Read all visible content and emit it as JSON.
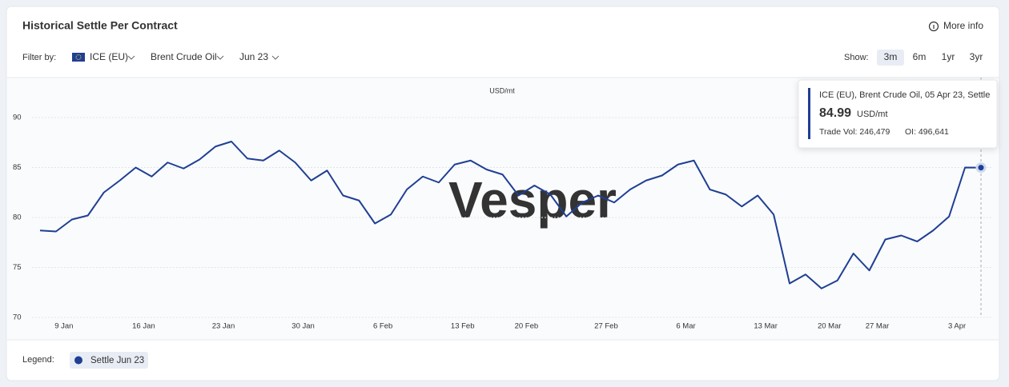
{
  "header": {
    "title": "Historical Settle Per Contract",
    "more_info": "More info"
  },
  "filters": {
    "label": "Filter by:",
    "exchange": "ICE (EU)",
    "product": "Brent Crude Oil",
    "contract": "Jun 23"
  },
  "show": {
    "label": "Show:",
    "options": [
      "3m",
      "6m",
      "1yr",
      "3yr"
    ],
    "selected": "3m"
  },
  "watermark": "Vesper",
  "tooltip": {
    "title": "ICE (EU), Brent Crude Oil, 05 Apr 23, Settle",
    "unit": "USD/mt",
    "trade_vol": "Trade Vol: 246,479",
    "oi": "OI: 496,641"
  },
  "legend_label": "Legend:",
  "chart_data": {
    "type": "line",
    "y_label": "USD/mt",
    "categories": [
      null,
      null,
      "9 Jan",
      null,
      null,
      null,
      null,
      "16 Jan",
      null,
      null,
      null,
      null,
      "23 Jan",
      null,
      null,
      null,
      null,
      "30 Jan",
      null,
      null,
      null,
      null,
      "6 Feb",
      null,
      null,
      null,
      null,
      "13 Feb",
      null,
      null,
      null,
      "20 Feb",
      null,
      null,
      null,
      null,
      "27 Feb",
      null,
      null,
      null,
      null,
      "6 Mar",
      null,
      null,
      null,
      null,
      "13 Mar",
      null,
      null,
      null,
      "20 Mar",
      null,
      null,
      "27 Mar",
      null,
      null,
      null,
      null,
      "3 Apr",
      null
    ],
    "series": [
      {
        "name": "Settle Jun 23",
        "color": "#1f3f94",
        "values": [
          78.7,
          78.6,
          79.8,
          80.2,
          82.5,
          83.7,
          85.0,
          84.1,
          85.5,
          84.9,
          85.8,
          87.1,
          87.6,
          85.9,
          85.7,
          86.7,
          85.5,
          83.7,
          84.7,
          82.2,
          81.7,
          79.4,
          80.3,
          82.8,
          84.1,
          83.5,
          85.3,
          85.7,
          84.8,
          84.3,
          82.2,
          83.2,
          82.3,
          80.1,
          81.5,
          82.2,
          81.5,
          82.8,
          83.7,
          84.2,
          85.3,
          85.7,
          82.8,
          82.3,
          81.1,
          82.2,
          80.3,
          73.4,
          74.3,
          72.9,
          73.7,
          76.4,
          74.7,
          77.8,
          78.2,
          77.6,
          78.7,
          80.1,
          85.0,
          84.99
        ]
      }
    ],
    "ylim": [
      70,
      94
    ],
    "yticks": [
      70,
      75,
      80,
      85,
      90
    ],
    "grid": true
  }
}
